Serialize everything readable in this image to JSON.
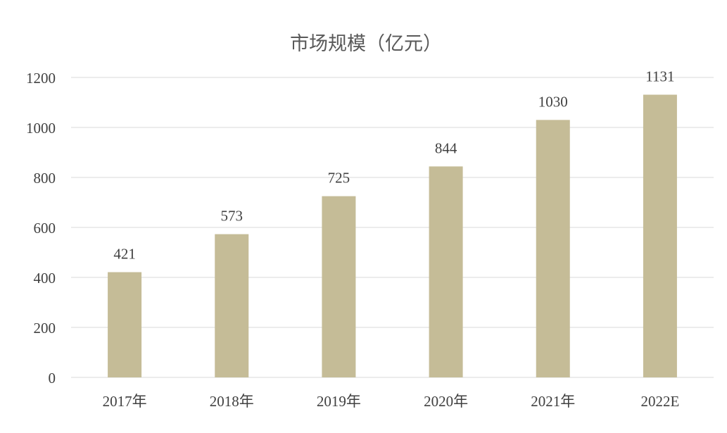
{
  "chart_data": {
    "type": "bar",
    "title": "市场规模（亿元）",
    "categories": [
      "2017年",
      "2018年",
      "2019年",
      "2020年",
      "2021年",
      "2022E"
    ],
    "values": [
      421,
      573,
      725,
      844,
      1030,
      1131
    ],
    "data_labels": [
      "421",
      "573",
      "725",
      "844",
      "1030",
      "1131"
    ],
    "xlabel": "",
    "ylabel": "",
    "ylim": [
      0,
      1200
    ],
    "yticks": [
      0,
      200,
      400,
      600,
      800,
      1000,
      1200
    ],
    "grid": true,
    "legend": "none",
    "colors": {
      "bar": "#c5bc97",
      "grid": "#d9d9d9",
      "text": "#404040",
      "title": "#595959"
    }
  }
}
